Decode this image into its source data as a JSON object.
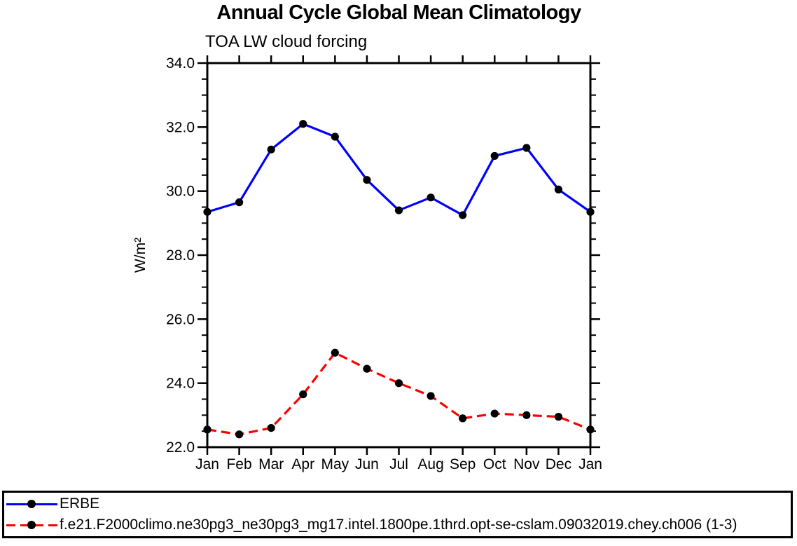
{
  "chart_data": {
    "type": "line",
    "title": "Annual Cycle Global Mean Climatology",
    "subtitle": "TOA LW cloud forcing",
    "xlabel": "",
    "ylabel": "W/m²",
    "categories": [
      "Jan",
      "Feb",
      "Mar",
      "Apr",
      "May",
      "Jun",
      "Jul",
      "Aug",
      "Sep",
      "Oct",
      "Nov",
      "Dec",
      "Jan"
    ],
    "ylim": [
      22.0,
      34.0
    ],
    "ytick_major": 2.0,
    "ytick_minor": 0.5,
    "ytick_label_format": "one_decimal",
    "grid": false,
    "legend_position": "bottom-outside-full-width",
    "frame_color": "#000000",
    "series": [
      {
        "name": "ERBE",
        "color": "#0000ff",
        "line_style": "solid",
        "marker": "circle",
        "marker_color": "#000000",
        "values": [
          29.35,
          29.65,
          31.3,
          32.1,
          31.7,
          30.35,
          29.4,
          29.8,
          29.25,
          31.1,
          31.35,
          30.05,
          29.35
        ]
      },
      {
        "name": "f.e21.F2000climo.ne30pg3_ne30pg3_mg17.intel.1800pe.1thrd.opt-se-cslam.09032019.chey.ch006 (1-3)",
        "color": "#ff0000",
        "line_style": "dashed",
        "marker": "circle",
        "marker_color": "#000000",
        "values": [
          22.55,
          22.4,
          22.6,
          23.65,
          24.95,
          24.45,
          24.0,
          23.6,
          22.9,
          23.05,
          23.0,
          22.95,
          22.55
        ]
      }
    ]
  }
}
